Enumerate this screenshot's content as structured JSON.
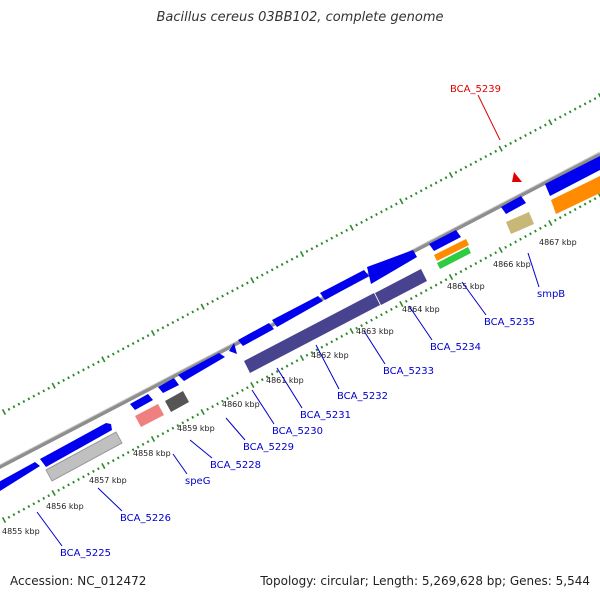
{
  "title": "Bacillus cereus 03BB102, complete genome",
  "footer": {
    "accession": "Accession: NC_012472",
    "topology": "Topology: circular; Length: 5,269,628 bp; Genes: 5,544"
  },
  "colors": {
    "backbone": "#8e8e8e",
    "feature": "#0000ee",
    "cds_dark": "#48438f",
    "label": "#0000cc",
    "highlight": "#e00000",
    "tick": "#2a8a2a"
  },
  "kbp_labels": [
    "4855 kbp",
    "4856 kbp",
    "4857 kbp",
    "4858 kbp",
    "4859 kbp",
    "4860 kbp",
    "4861 kbp",
    "4862 kbp",
    "4863 kbp",
    "4864 kbp",
    "4865 kbp",
    "4866 kbp",
    "4867 kbp"
  ],
  "gene_labels": [
    "BCA_5225",
    "BCA_5226",
    "speG",
    "BCA_5228",
    "BCA_5229",
    "BCA_5230",
    "BCA_5231",
    "BCA_5232",
    "BCA_5233",
    "BCA_5234",
    "BCA_5235",
    "smpB"
  ],
  "highlight_label": "BCA_5239"
}
